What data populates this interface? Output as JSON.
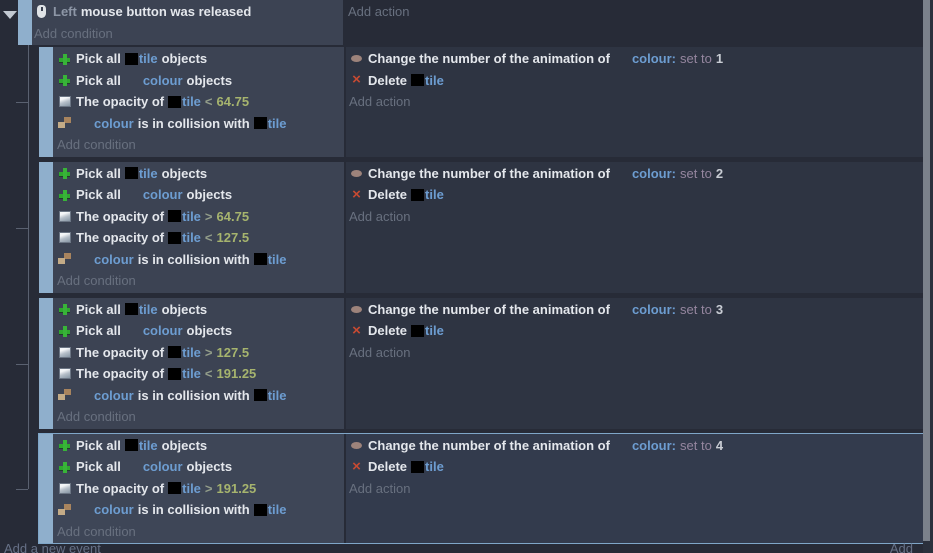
{
  "colors": {
    "page_bg": "#272b37",
    "condition_bg": "#3c4353",
    "action_bg": "#2e3442",
    "handle": "#8fafcc",
    "selected_border": "#7fa6c8",
    "object_link": "#6d9dd1",
    "number": "#a6b46e",
    "delete_red": "#c64a32",
    "pick_green": "#38b438"
  },
  "top_event": {
    "condition": {
      "icon": "mouse-icon",
      "parts": [
        [
          "param",
          "Left"
        ],
        [
          "text",
          "mouse button was released"
        ]
      ]
    },
    "add_condition": "Add condition",
    "add_action": "Add action"
  },
  "events": [
    {
      "selected": false,
      "conditions": [
        {
          "icon": "pick-icon",
          "parts": [
            [
              "text",
              "Pick all"
            ],
            [
              "thumb",
              ""
            ],
            [
              "object",
              "tile"
            ],
            [
              "text",
              "objects"
            ]
          ]
        },
        {
          "icon": "pick-icon",
          "parts": [
            [
              "text",
              "Pick all"
            ],
            [
              "gap",
              ""
            ],
            [
              "object",
              "colour"
            ],
            [
              "text",
              "objects"
            ]
          ]
        },
        {
          "icon": "opacity-icon",
          "parts": [
            [
              "text",
              "The opacity of"
            ],
            [
              "thumb",
              ""
            ],
            [
              "object",
              "tile"
            ],
            [
              "op",
              "<"
            ],
            [
              "num",
              "64.75"
            ]
          ]
        },
        {
          "icon": "collision-icon",
          "parts": [
            [
              "gap",
              ""
            ],
            [
              "object",
              "colour"
            ],
            [
              "text",
              "is in collision with"
            ],
            [
              "thumb",
              ""
            ],
            [
              "object",
              "tile"
            ]
          ]
        }
      ],
      "actions": [
        {
          "icon": "animation-icon",
          "parts": [
            [
              "text",
              "Change the number of the animation of"
            ],
            [
              "gap",
              ""
            ],
            [
              "object",
              "colour:"
            ],
            [
              "setto",
              "set to"
            ],
            [
              "val",
              "1"
            ]
          ]
        },
        {
          "icon": "delete-icon",
          "parts": [
            [
              "text",
              "Delete"
            ],
            [
              "thumb",
              ""
            ],
            [
              "object",
              "tile"
            ]
          ]
        }
      ],
      "add_condition": "Add condition",
      "add_action": "Add action"
    },
    {
      "selected": false,
      "conditions": [
        {
          "icon": "pick-icon",
          "parts": [
            [
              "text",
              "Pick all"
            ],
            [
              "thumb",
              ""
            ],
            [
              "object",
              "tile"
            ],
            [
              "text",
              "objects"
            ]
          ]
        },
        {
          "icon": "pick-icon",
          "parts": [
            [
              "text",
              "Pick all"
            ],
            [
              "gap",
              ""
            ],
            [
              "object",
              "colour"
            ],
            [
              "text",
              "objects"
            ]
          ]
        },
        {
          "icon": "opacity-icon",
          "parts": [
            [
              "text",
              "The opacity of"
            ],
            [
              "thumb",
              ""
            ],
            [
              "object",
              "tile"
            ],
            [
              "op",
              ">"
            ],
            [
              "num",
              "64.75"
            ]
          ]
        },
        {
          "icon": "opacity-icon",
          "parts": [
            [
              "text",
              "The opacity of"
            ],
            [
              "thumb",
              ""
            ],
            [
              "object",
              "tile"
            ],
            [
              "op",
              "<"
            ],
            [
              "num",
              "127.5"
            ]
          ]
        },
        {
          "icon": "collision-icon",
          "parts": [
            [
              "gap",
              ""
            ],
            [
              "object",
              "colour"
            ],
            [
              "text",
              "is in collision with"
            ],
            [
              "thumb",
              ""
            ],
            [
              "object",
              "tile"
            ]
          ]
        }
      ],
      "actions": [
        {
          "icon": "animation-icon",
          "parts": [
            [
              "text",
              "Change the number of the animation of"
            ],
            [
              "gap",
              ""
            ],
            [
              "object",
              "colour:"
            ],
            [
              "setto",
              "set to"
            ],
            [
              "val",
              "2"
            ]
          ]
        },
        {
          "icon": "delete-icon",
          "parts": [
            [
              "text",
              "Delete"
            ],
            [
              "thumb",
              ""
            ],
            [
              "object",
              "tile"
            ]
          ]
        }
      ],
      "add_condition": "Add condition",
      "add_action": "Add action"
    },
    {
      "selected": false,
      "conditions": [
        {
          "icon": "pick-icon",
          "parts": [
            [
              "text",
              "Pick all"
            ],
            [
              "thumb",
              ""
            ],
            [
              "object",
              "tile"
            ],
            [
              "text",
              "objects"
            ]
          ]
        },
        {
          "icon": "pick-icon",
          "parts": [
            [
              "text",
              "Pick all"
            ],
            [
              "gap",
              ""
            ],
            [
              "object",
              "colour"
            ],
            [
              "text",
              "objects"
            ]
          ]
        },
        {
          "icon": "opacity-icon",
          "parts": [
            [
              "text",
              "The opacity of"
            ],
            [
              "thumb",
              ""
            ],
            [
              "object",
              "tile"
            ],
            [
              "op",
              ">"
            ],
            [
              "num",
              "127.5"
            ]
          ]
        },
        {
          "icon": "opacity-icon",
          "parts": [
            [
              "text",
              "The opacity of"
            ],
            [
              "thumb",
              ""
            ],
            [
              "object",
              "tile"
            ],
            [
              "op",
              "<"
            ],
            [
              "num",
              "191.25"
            ]
          ]
        },
        {
          "icon": "collision-icon",
          "parts": [
            [
              "gap",
              ""
            ],
            [
              "object",
              "colour"
            ],
            [
              "text",
              "is in collision with"
            ],
            [
              "thumb",
              ""
            ],
            [
              "object",
              "tile"
            ]
          ]
        }
      ],
      "actions": [
        {
          "icon": "animation-icon",
          "parts": [
            [
              "text",
              "Change the number of the animation of"
            ],
            [
              "gap",
              ""
            ],
            [
              "object",
              "colour:"
            ],
            [
              "setto",
              "set to"
            ],
            [
              "val",
              "3"
            ]
          ]
        },
        {
          "icon": "delete-icon",
          "parts": [
            [
              "text",
              "Delete"
            ],
            [
              "thumb",
              ""
            ],
            [
              "object",
              "tile"
            ]
          ]
        }
      ],
      "add_condition": "Add condition",
      "add_action": "Add action"
    },
    {
      "selected": true,
      "conditions": [
        {
          "icon": "pick-icon",
          "parts": [
            [
              "text",
              "Pick all"
            ],
            [
              "thumb",
              ""
            ],
            [
              "object",
              "tile"
            ],
            [
              "text",
              "objects"
            ]
          ]
        },
        {
          "icon": "pick-icon",
          "parts": [
            [
              "text",
              "Pick all"
            ],
            [
              "gap",
              ""
            ],
            [
              "object",
              "colour"
            ],
            [
              "text",
              "objects"
            ]
          ]
        },
        {
          "icon": "opacity-icon",
          "parts": [
            [
              "text",
              "The opacity of"
            ],
            [
              "thumb",
              ""
            ],
            [
              "object",
              "tile"
            ],
            [
              "op",
              ">"
            ],
            [
              "num",
              "191.25"
            ]
          ]
        },
        {
          "icon": "collision-icon",
          "parts": [
            [
              "gap",
              ""
            ],
            [
              "object",
              "colour"
            ],
            [
              "text",
              "is in collision with"
            ],
            [
              "thumb",
              ""
            ],
            [
              "object",
              "tile"
            ]
          ]
        }
      ],
      "actions": [
        {
          "icon": "animation-icon",
          "parts": [
            [
              "text",
              "Change the number of the animation of"
            ],
            [
              "gap",
              ""
            ],
            [
              "object",
              "colour:"
            ],
            [
              "setto",
              "set to"
            ],
            [
              "val",
              "4"
            ]
          ]
        },
        {
          "icon": "delete-icon",
          "parts": [
            [
              "text",
              "Delete"
            ],
            [
              "thumb",
              ""
            ],
            [
              "object",
              "tile"
            ]
          ]
        }
      ],
      "add_condition": "Add condition",
      "add_action": "Add action"
    }
  ],
  "footer": {
    "add_new_event": "Add a new event",
    "add_button": "Add"
  }
}
